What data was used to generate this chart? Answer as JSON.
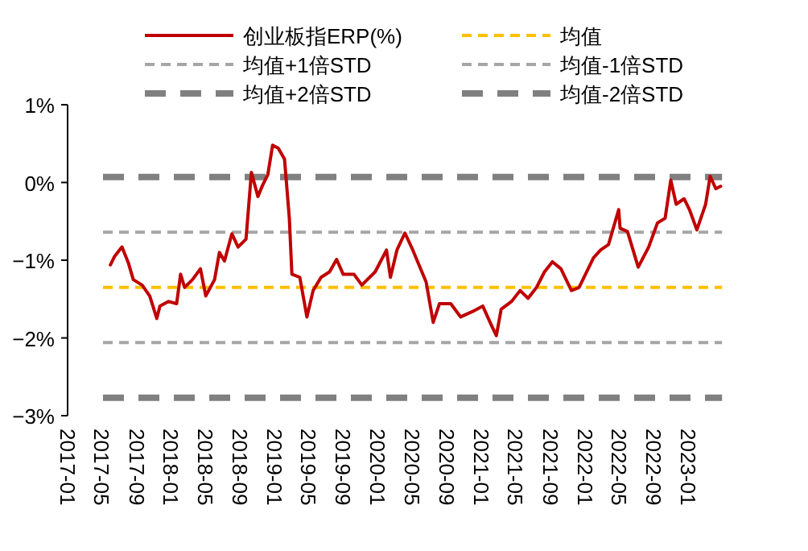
{
  "chart_data": {
    "type": "line",
    "legend": "top",
    "line_style": "solid",
    "x": [
      "2017-06-01",
      "2017-06-16",
      "2017-07-12",
      "2017-08-04",
      "2017-08-21",
      "2017-09-21",
      "2017-10-18",
      "2017-11-12",
      "2017-11-23",
      "2017-12-23",
      "2018-01-21",
      "2018-02-04",
      "2018-02-18",
      "2018-03-18",
      "2018-04-15",
      "2018-05-04",
      "2018-06-04",
      "2018-06-21",
      "2018-07-09",
      "2018-08-04",
      "2018-08-26",
      "2018-09-23",
      "2018-10-12",
      "2018-11-04",
      "2018-11-20",
      "2018-12-09",
      "2018-12-26",
      "2019-01-15",
      "2019-02-06",
      "2019-02-23",
      "2019-03-04",
      "2019-04-01",
      "2019-04-26",
      "2019-05-18",
      "2019-06-15",
      "2019-07-15",
      "2019-08-09",
      "2019-09-01",
      "2019-10-09",
      "2019-11-06",
      "2019-12-23",
      "2020-02-01",
      "2020-02-15",
      "2020-03-09",
      "2020-04-06",
      "2020-05-04",
      "2020-05-20",
      "2020-06-20",
      "2020-07-15",
      "2020-08-06",
      "2020-09-15",
      "2020-10-20",
      "2020-12-01",
      "2021-01-06",
      "2021-02-06",
      "2021-02-23",
      "2021-03-12",
      "2021-04-18",
      "2021-05-18",
      "2021-06-15",
      "2021-07-15",
      "2021-08-12",
      "2021-09-09",
      "2021-10-09",
      "2021-11-15",
      "2021-12-12",
      "2022-02-01",
      "2022-02-26",
      "2022-03-26",
      "2022-05-01",
      "2022-05-06",
      "2022-06-01",
      "2022-07-09",
      "2022-08-15",
      "2022-09-15",
      "2022-10-12",
      "2022-11-01",
      "2022-11-20",
      "2022-12-18",
      "2023-01-06",
      "2023-02-01",
      "2023-03-04",
      "2023-03-20",
      "2023-04-09",
      "2023-04-26"
    ],
    "series": [
      {
        "name": "创业板指ERP(%)",
        "color": "#c00000",
        "values": [
          -1.06,
          -0.95,
          -0.83,
          -1.04,
          -1.25,
          -1.32,
          -1.46,
          -1.75,
          -1.59,
          -1.53,
          -1.56,
          -1.18,
          -1.35,
          -1.25,
          -1.11,
          -1.46,
          -1.25,
          -0.9,
          -1.01,
          -0.66,
          -0.83,
          -0.73,
          0.13,
          -0.18,
          -0.04,
          0.1,
          0.48,
          0.44,
          0.3,
          -0.46,
          -1.18,
          -1.22,
          -1.73,
          -1.39,
          -1.22,
          -1.15,
          -0.99,
          -1.18,
          -1.18,
          -1.32,
          -1.15,
          -0.87,
          -1.22,
          -0.87,
          -0.65,
          -0.87,
          -1.01,
          -1.28,
          -1.8,
          -1.56,
          -1.56,
          -1.73,
          -1.66,
          -1.59,
          -1.84,
          -1.97,
          -1.63,
          -1.53,
          -1.39,
          -1.49,
          -1.35,
          -1.15,
          -1.02,
          -1.11,
          -1.39,
          -1.35,
          -0.97,
          -0.87,
          -0.8,
          -0.35,
          -0.59,
          -0.63,
          -1.09,
          -0.83,
          -0.52,
          -0.46,
          0.03,
          -0.28,
          -0.21,
          -0.35,
          -0.61,
          -0.28,
          0.08,
          -0.08,
          -0.05
        ]
      }
    ],
    "ref_lines": [
      {
        "axis": "y",
        "value": -1.35,
        "label": "均值",
        "color": "#ffc000",
        "line_style": "dashed"
      },
      {
        "axis": "y",
        "value": -0.64,
        "label": "均值+1倍STD",
        "color": "#a6a6a6",
        "line_style": "dashed"
      },
      {
        "axis": "y",
        "value": -2.06,
        "label": "均值-1倍STD",
        "color": "#a6a6a6",
        "line_style": "dashed"
      },
      {
        "axis": "y",
        "value": 0.07,
        "label": "均值+2倍STD",
        "color": "#808080",
        "line_style": "dashed"
      },
      {
        "axis": "y",
        "value": -2.77,
        "label": "均值-2倍STD",
        "color": "#808080",
        "line_style": "dashed"
      }
    ],
    "ylim": [
      -3,
      1
    ],
    "yticks": [
      {
        "value": 1,
        "label": "1%"
      },
      {
        "value": 0,
        "label": "0%"
      },
      {
        "value": -1,
        "label": "−1%"
      },
      {
        "value": -2,
        "label": "−2%"
      },
      {
        "value": -3,
        "label": "−3%"
      }
    ],
    "xlim": [
      "2017-01-01",
      "2023-05-01"
    ],
    "xticks": [
      {
        "value": "2017-01",
        "label": "2017-01"
      },
      {
        "value": "2017-05",
        "label": "2017-05"
      },
      {
        "value": "2017-09",
        "label": "2017-09"
      },
      {
        "value": "2018-01",
        "label": "2018-01"
      },
      {
        "value": "2018-05",
        "label": "2018-05"
      },
      {
        "value": "2018-09",
        "label": "2018-09"
      },
      {
        "value": "2019-01",
        "label": "2019-01"
      },
      {
        "value": "2019-05",
        "label": "2019-05"
      },
      {
        "value": "2019-09",
        "label": "2019-09"
      },
      {
        "value": "2020-01",
        "label": "2020-01"
      },
      {
        "value": "2020-05",
        "label": "2020-05"
      },
      {
        "value": "2020-09",
        "label": "2020-09"
      },
      {
        "value": "2021-01",
        "label": "2021-01"
      },
      {
        "value": "2021-05",
        "label": "2021-05"
      },
      {
        "value": "2021-09",
        "label": "2021-09"
      },
      {
        "value": "2022-01",
        "label": "2022-01"
      },
      {
        "value": "2022-05",
        "label": "2022-05"
      },
      {
        "value": "2022-09",
        "label": "2022-09"
      },
      {
        "value": "2023-01",
        "label": "2023-01"
      }
    ]
  }
}
